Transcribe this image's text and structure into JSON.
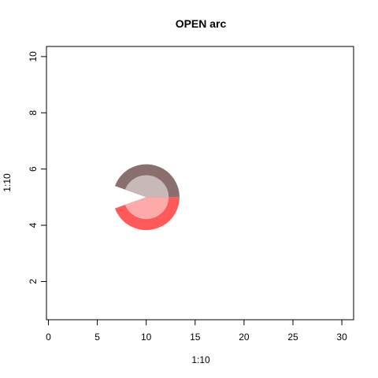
{
  "chart_data": {
    "type": "scatter",
    "title": "OPEN arc",
    "xlabel": "1:10",
    "ylabel": "1:10",
    "xlim": [
      -0.2,
      31.2
    ],
    "ylim": [
      0.64,
      10.36
    ],
    "x_ticks": [
      0,
      5,
      10,
      15,
      20,
      25,
      30
    ],
    "y_ticks": [
      2,
      4,
      6,
      8,
      10
    ],
    "grid": false,
    "legend": "none",
    "shapes": [
      {
        "name": "upper-arc",
        "center": [
          10,
          5
        ],
        "outer_radius_x": 3.4,
        "outer_radius_y": 1.17,
        "inner_radius_x": 2.3,
        "inner_radius_y": 0.78,
        "angle_start_deg": 0,
        "angle_end_deg": 160,
        "ring_color": "#8b6e6e",
        "inner_color": "#c8b9b9"
      },
      {
        "name": "lower-arc",
        "center": [
          10,
          5
        ],
        "outer_radius_x": 3.4,
        "outer_radius_y": 1.17,
        "inner_radius_x": 2.3,
        "inner_radius_y": 0.78,
        "angle_start_deg": 200,
        "angle_end_deg": 360,
        "ring_color": "#ff5959",
        "inner_color": "#ffaaaa"
      }
    ]
  }
}
